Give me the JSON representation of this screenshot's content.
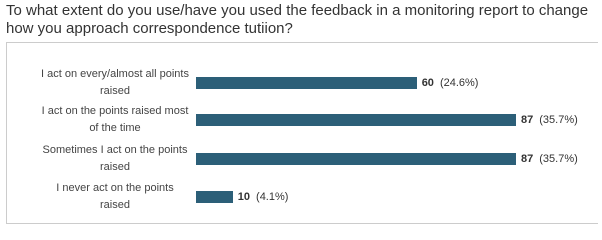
{
  "chart_data": {
    "type": "bar",
    "orientation": "horizontal",
    "title": "To what extent do you use/have you used the feedback in a monitoring report to change how you approach correspondence tutiion?",
    "categories": [
      "I act on every/almost all points raised",
      "I act on the points raised most of the time",
      "Sometimes I act on the points raised",
      "I never act on the points raised"
    ],
    "values": [
      60,
      87,
      87,
      10
    ],
    "percent_labels": [
      "(24.6%)",
      "(35.7%)",
      "(35.7%)",
      "(4.1%)"
    ],
    "color": "#2c5f78"
  }
}
